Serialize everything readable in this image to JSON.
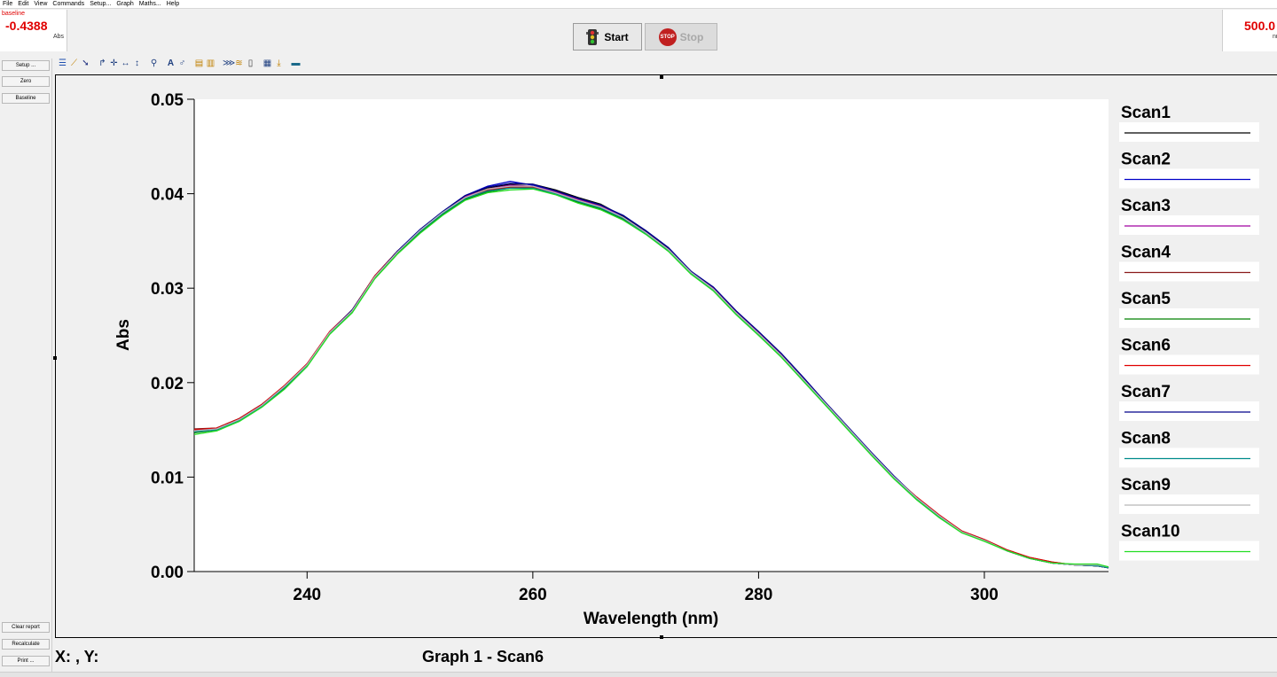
{
  "menu": [
    "File",
    "Edit",
    "View",
    "Commands",
    "Setup...",
    "Graph",
    "Maths...",
    "Help"
  ],
  "readout_left": {
    "label": "baseline",
    "value": "-0.4388",
    "unit": "Abs"
  },
  "readout_right": {
    "value": "500.0",
    "unit": "nm"
  },
  "controls": {
    "start_label": "Start",
    "stop_label": "Stop",
    "stop_icon_text": "STOP"
  },
  "sidebar": {
    "top": [
      "Setup ...",
      "Zero",
      "Baseline"
    ],
    "bottom": [
      "Clear report",
      "Recalculate",
      "Print ..."
    ]
  },
  "toolbar_icons": [
    "report-icon",
    "graph-icon",
    "cursor-icon",
    "peak-pick-icon",
    "crosshair-icon",
    "horizontal-scale-icon",
    "vertical-scale-icon",
    "zoom-icon",
    "text-annotate-icon",
    "label-icon",
    "copy-graph-icon",
    "paste-graph-icon",
    "overlay-icon",
    "stack-icon",
    "delete-icon",
    "save-graph-icon",
    "export-icon",
    "calculator-icon"
  ],
  "status": {
    "xy": "X: , Y:",
    "graph_title": "Graph 1 - Scan6"
  },
  "colors": {
    "readout": "#e00000"
  },
  "chart_data": {
    "type": "line",
    "xlabel": "Wavelength (nm)",
    "ylabel": "Abs",
    "xlim": [
      230,
      311
    ],
    "ylim": [
      0,
      0.05
    ],
    "xticks": [
      240,
      260,
      280,
      300
    ],
    "yticks": [
      0.0,
      0.01,
      0.02,
      0.03,
      0.04,
      0.05
    ],
    "grid": false,
    "legend_position": "right",
    "x": [
      230,
      232,
      234,
      236,
      238,
      240,
      242,
      244,
      246,
      248,
      250,
      252,
      254,
      256,
      258,
      260,
      262,
      264,
      266,
      268,
      270,
      272,
      274,
      276,
      278,
      280,
      282,
      284,
      286,
      288,
      290,
      292,
      294,
      296,
      298,
      300,
      302,
      304,
      306,
      308,
      310,
      311
    ],
    "series": [
      {
        "name": "Scan1",
        "color": "#000000",
        "values": [
          0.015,
          0.0152,
          0.0162,
          0.0177,
          0.0196,
          0.0219,
          0.0253,
          0.0277,
          0.0313,
          0.0339,
          0.0361,
          0.038,
          0.0397,
          0.0406,
          0.041,
          0.041,
          0.0404,
          0.0396,
          0.0389,
          0.0376,
          0.036,
          0.0342,
          0.0318,
          0.03,
          0.0275,
          0.0253,
          0.023,
          0.0204,
          0.0178,
          0.0152,
          0.0125,
          0.01,
          0.0078,
          0.0059,
          0.0042,
          0.0033,
          0.0022,
          0.0014,
          0.0009,
          0.0007,
          0.0006,
          0.0004
        ]
      },
      {
        "name": "Scan2",
        "color": "#0000c8",
        "values": [
          0.0149,
          0.0151,
          0.0161,
          0.0176,
          0.0195,
          0.0219,
          0.0253,
          0.0276,
          0.0312,
          0.0339,
          0.0362,
          0.0381,
          0.0398,
          0.0408,
          0.0413,
          0.0409,
          0.0402,
          0.0395,
          0.0387,
          0.0377,
          0.0361,
          0.0343,
          0.0318,
          0.0301,
          0.0276,
          0.0254,
          0.0231,
          0.0205,
          0.0178,
          0.0152,
          0.0126,
          0.0101,
          0.0078,
          0.0059,
          0.0042,
          0.0033,
          0.0022,
          0.0014,
          0.0009,
          0.0007,
          0.0006,
          0.0004
        ]
      },
      {
        "name": "Scan3",
        "color": "#a000a0",
        "values": [
          0.015,
          0.0151,
          0.0161,
          0.0176,
          0.0196,
          0.0219,
          0.0253,
          0.0276,
          0.0313,
          0.0339,
          0.0361,
          0.038,
          0.0397,
          0.0405,
          0.0409,
          0.0408,
          0.0402,
          0.0394,
          0.0387,
          0.0375,
          0.0359,
          0.0341,
          0.0317,
          0.03,
          0.0275,
          0.0253,
          0.023,
          0.0204,
          0.0177,
          0.0151,
          0.0125,
          0.01,
          0.0078,
          0.0059,
          0.0042,
          0.0033,
          0.0022,
          0.0014,
          0.0009,
          0.0007,
          0.0006,
          0.0004
        ]
      },
      {
        "name": "Scan4",
        "color": "#8b1a1a",
        "values": [
          0.0151,
          0.0152,
          0.0162,
          0.0177,
          0.0196,
          0.022,
          0.0253,
          0.0277,
          0.0313,
          0.0339,
          0.0361,
          0.038,
          0.0396,
          0.0404,
          0.0407,
          0.0407,
          0.0401,
          0.0393,
          0.0386,
          0.0374,
          0.0358,
          0.0341,
          0.0317,
          0.0299,
          0.0274,
          0.0252,
          0.0229,
          0.0203,
          0.0177,
          0.0151,
          0.0125,
          0.01,
          0.0078,
          0.0059,
          0.0043,
          0.0034,
          0.0023,
          0.0015,
          0.001,
          0.0007,
          0.0006,
          0.0004
        ]
      },
      {
        "name": "Scan5",
        "color": "#008000",
        "values": [
          0.0147,
          0.015,
          0.016,
          0.0175,
          0.0194,
          0.0218,
          0.0252,
          0.0275,
          0.0311,
          0.0337,
          0.0359,
          0.0378,
          0.0394,
          0.0402,
          0.0406,
          0.0406,
          0.04,
          0.0391,
          0.0384,
          0.0373,
          0.0358,
          0.034,
          0.0316,
          0.0298,
          0.0273,
          0.0251,
          0.0228,
          0.0202,
          0.0176,
          0.015,
          0.0124,
          0.0099,
          0.0077,
          0.0058,
          0.0042,
          0.0033,
          0.0022,
          0.0014,
          0.0009,
          0.0007,
          0.0006,
          0.0004
        ]
      },
      {
        "name": "Scan6",
        "color": "#e00000",
        "values": [
          0.015,
          0.0152,
          0.0162,
          0.0177,
          0.0197,
          0.022,
          0.0254,
          0.0277,
          0.0313,
          0.0339,
          0.0361,
          0.038,
          0.0396,
          0.0404,
          0.0407,
          0.0407,
          0.0401,
          0.0393,
          0.0386,
          0.0374,
          0.0358,
          0.034,
          0.0316,
          0.0299,
          0.0274,
          0.0252,
          0.0229,
          0.0203,
          0.0177,
          0.0151,
          0.0125,
          0.01,
          0.0079,
          0.006,
          0.0043,
          0.0034,
          0.0023,
          0.0015,
          0.001,
          0.0007,
          0.0006,
          0.0004
        ]
      },
      {
        "name": "Scan7",
        "color": "#00008b",
        "values": [
          0.0149,
          0.0151,
          0.0161,
          0.0176,
          0.0196,
          0.0219,
          0.0253,
          0.0277,
          0.0312,
          0.0339,
          0.0362,
          0.0381,
          0.0398,
          0.0407,
          0.0411,
          0.041,
          0.0403,
          0.0395,
          0.0388,
          0.0377,
          0.0361,
          0.0343,
          0.0318,
          0.0301,
          0.0276,
          0.0254,
          0.0231,
          0.0205,
          0.0178,
          0.0152,
          0.0126,
          0.0101,
          0.0078,
          0.0059,
          0.0042,
          0.0033,
          0.0022,
          0.0014,
          0.0009,
          0.0007,
          0.0006,
          0.0004
        ]
      },
      {
        "name": "Scan8",
        "color": "#008b8b",
        "values": [
          0.0148,
          0.015,
          0.016,
          0.0175,
          0.0195,
          0.0218,
          0.0252,
          0.0276,
          0.0312,
          0.0338,
          0.036,
          0.0379,
          0.0395,
          0.0403,
          0.0406,
          0.0406,
          0.04,
          0.0392,
          0.0385,
          0.0374,
          0.0358,
          0.034,
          0.0316,
          0.0298,
          0.0273,
          0.0251,
          0.0228,
          0.0202,
          0.0176,
          0.015,
          0.0124,
          0.0099,
          0.0077,
          0.0058,
          0.0042,
          0.0033,
          0.0022,
          0.0014,
          0.0009,
          0.0007,
          0.0006,
          0.0004
        ]
      },
      {
        "name": "Scan9",
        "color": "#b8b8b8",
        "values": [
          0.0149,
          0.0151,
          0.0161,
          0.0176,
          0.0196,
          0.0219,
          0.0253,
          0.0276,
          0.0312,
          0.0338,
          0.0361,
          0.038,
          0.0396,
          0.0405,
          0.0408,
          0.0408,
          0.0401,
          0.0393,
          0.0386,
          0.0375,
          0.0359,
          0.0341,
          0.0317,
          0.0299,
          0.0274,
          0.0252,
          0.0229,
          0.0203,
          0.0177,
          0.0151,
          0.0125,
          0.01,
          0.0078,
          0.0059,
          0.0042,
          0.0033,
          0.0022,
          0.0014,
          0.0009,
          0.0007,
          0.0007,
          0.0005
        ]
      },
      {
        "name": "Scan10",
        "color": "#22dd22",
        "values": [
          0.0145,
          0.0149,
          0.0159,
          0.0174,
          0.0193,
          0.0217,
          0.0251,
          0.0274,
          0.031,
          0.0336,
          0.0358,
          0.0377,
          0.0393,
          0.0401,
          0.0404,
          0.0405,
          0.0399,
          0.039,
          0.0383,
          0.0372,
          0.0357,
          0.0339,
          0.0315,
          0.0297,
          0.0272,
          0.025,
          0.0227,
          0.0201,
          0.0175,
          0.0149,
          0.0123,
          0.0098,
          0.0076,
          0.0057,
          0.0041,
          0.0032,
          0.0022,
          0.0014,
          0.0009,
          0.0008,
          0.0008,
          0.0005
        ]
      }
    ]
  }
}
